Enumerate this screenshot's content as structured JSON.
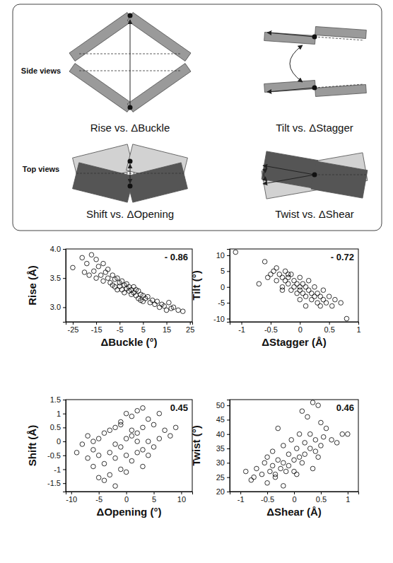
{
  "diagram": {
    "side_label": "Side views",
    "top_label": "Top views",
    "panels": [
      "Rise vs. ΔBuckle",
      "Tilt vs. ΔStagger",
      "Shift vs. ΔOpening",
      "Twist vs. ΔShear"
    ]
  },
  "chart_data": [
    {
      "type": "scatter",
      "x_label": "ΔBuckle (°)",
      "y_label": "Rise (Å)",
      "annotation": "- 0.86",
      "marker": "circle",
      "color": "#000000",
      "xlim": [
        -28,
        26
      ],
      "ylim": [
        2.75,
        4.0
      ],
      "xticks": [
        -25,
        -15,
        -5,
        5,
        15,
        25
      ],
      "yticks": [
        {
          "value": 3,
          "label": "3.0"
        },
        {
          "value": 3.5,
          "label": "3.5"
        },
        {
          "value": 4,
          "label": "4.0"
        }
      ],
      "x": [
        -25,
        -21,
        -20,
        -19,
        -18,
        -17,
        -16,
        -15,
        -15,
        -14,
        -13,
        -12,
        -12,
        -11,
        -10,
        -10,
        -9,
        -8,
        -8,
        -7,
        -7,
        -6,
        -6,
        -5,
        -5,
        -4,
        -4,
        -3,
        -3,
        -2,
        -2,
        -1,
        -1,
        0,
        0,
        1,
        1,
        2,
        2,
        3,
        3,
        4,
        4,
        5,
        5,
        6,
        7,
        8,
        9,
        10,
        11,
        12,
        13,
        14,
        15,
        16,
        17,
        18,
        20,
        22
      ],
      "y": [
        3.68,
        3.85,
        3.6,
        3.75,
        3.55,
        3.9,
        3.62,
        3.82,
        3.5,
        3.7,
        3.55,
        3.75,
        3.45,
        3.6,
        3.5,
        3.65,
        3.42,
        3.55,
        3.38,
        3.48,
        3.35,
        3.5,
        3.3,
        3.42,
        3.36,
        3.3,
        3.45,
        3.38,
        3.25,
        3.32,
        3.4,
        3.28,
        3.35,
        3.3,
        3.22,
        3.35,
        3.25,
        3.2,
        3.3,
        3.28,
        3.15,
        3.22,
        3.12,
        3.2,
        3.1,
        3.15,
        3.18,
        3.08,
        3.12,
        3.05,
        3.1,
        3.0,
        3.05,
        3.02,
        2.95,
        3.08,
        2.98,
        3.0,
        2.95,
        2.93
      ]
    },
    {
      "type": "scatter",
      "x_label": "ΔStagger (Å)",
      "y_label": "Tilt (°)",
      "annotation": "- 0.72",
      "marker": "circle",
      "color": "#000000",
      "xlim": [
        -1.2,
        1.0
      ],
      "ylim": [
        -11,
        12
      ],
      "xticks": [
        -1,
        -0.5,
        0,
        0.5,
        1
      ],
      "yticks": [
        -10,
        -5,
        0,
        5,
        10
      ],
      "x": [
        -1.1,
        -0.7,
        -0.6,
        -0.55,
        -0.5,
        -0.45,
        -0.4,
        -0.4,
        -0.35,
        -0.3,
        -0.3,
        -0.25,
        -0.25,
        -0.2,
        -0.2,
        -0.15,
        -0.15,
        -0.1,
        -0.1,
        -0.05,
        -0.05,
        0,
        0,
        0,
        0.05,
        0.05,
        0.1,
        0.1,
        0.15,
        0.15,
        0.2,
        0.2,
        0.25,
        0.25,
        0.3,
        0.3,
        0.35,
        0.4,
        0.4,
        0.45,
        0.5,
        0.55,
        0.6,
        0.7,
        0.8,
        -0.3,
        0.0,
        0.1,
        -0.2,
        0.35
      ],
      "y": [
        11,
        1,
        8,
        3,
        4,
        5,
        2,
        6,
        4,
        3,
        0,
        5,
        2,
        3,
        1,
        4,
        -1,
        2,
        0,
        1,
        -2,
        3,
        0,
        -1,
        1,
        -2,
        0,
        -3,
        -1,
        2,
        -2,
        -4,
        0,
        -3,
        -2,
        -5,
        -3,
        -1,
        -4,
        -5,
        -3,
        -6,
        -4,
        -5,
        -10,
        -1,
        -4,
        -6,
        4,
        -6
      ]
    },
    {
      "type": "scatter",
      "x_label": "ΔOpening (°)",
      "y_label": "Shift (Å)",
      "annotation": "0.45",
      "marker": "circle",
      "color": "#000000",
      "xlim": [
        -11,
        12
      ],
      "ylim": [
        -1.8,
        1.5
      ],
      "xticks": [
        -10,
        -5,
        0,
        5,
        10
      ],
      "yticks": [
        -1.5,
        -1,
        -0.5,
        0,
        0.5,
        1,
        1.5
      ],
      "x": [
        -9,
        -8,
        -7,
        -7,
        -6,
        -6,
        -5,
        -5,
        -5,
        -4,
        -4,
        -3,
        -3,
        -3,
        -2,
        -2,
        -2,
        -1,
        -1,
        -1,
        0,
        0,
        0,
        1,
        1,
        1,
        2,
        2,
        2,
        3,
        3,
        3,
        4,
        4,
        5,
        5,
        6,
        6,
        7,
        8,
        9,
        -4,
        -2,
        0,
        2,
        4,
        -6,
        1,
        3,
        -1
      ],
      "y": [
        -0.4,
        -0.1,
        -0.6,
        0.2,
        -0.9,
        -0.3,
        -1.3,
        -0.5,
        0.1,
        -0.8,
        0.3,
        -1.2,
        -0.4,
        0.4,
        -1.6,
        -0.6,
        0.5,
        -1.0,
        -0.2,
        0.7,
        -0.5,
        0.1,
        1.0,
        -0.7,
        0.2,
        0.9,
        -0.4,
        0.3,
        1.1,
        -0.3,
        0.5,
        1.2,
        0.0,
        0.8,
        -0.2,
        0.6,
        0.1,
        1.0,
        0.4,
        0.2,
        0.5,
        -1.4,
        -0.1,
        -1.1,
        0.0,
        -0.5,
        0.0,
        0.4,
        -0.9,
        0.6
      ]
    },
    {
      "type": "scatter",
      "x_label": "ΔShear (Å)",
      "y_label": "Twist (°)",
      "annotation": "0.46",
      "marker": "circle",
      "color": "#000000",
      "xlim": [
        -1.2,
        1.2
      ],
      "ylim": [
        20,
        52
      ],
      "xticks": [
        -1,
        -0.5,
        0,
        0.5,
        1
      ],
      "yticks": [
        20,
        25,
        30,
        35,
        40,
        45,
        50
      ],
      "x": [
        -0.9,
        -0.8,
        -0.75,
        -0.7,
        -0.6,
        -0.55,
        -0.5,
        -0.5,
        -0.45,
        -0.4,
        -0.4,
        -0.35,
        -0.3,
        -0.3,
        -0.25,
        -0.2,
        -0.2,
        -0.15,
        -0.1,
        -0.1,
        -0.05,
        0,
        0,
        0.05,
        0.1,
        0.1,
        0.15,
        0.2,
        0.2,
        0.25,
        0.3,
        0.3,
        0.35,
        0.4,
        0.4,
        0.45,
        0.5,
        0.5,
        0.55,
        0.6,
        0.7,
        0.8,
        0.9,
        1.0,
        -0.35,
        0.15,
        0.35,
        0.45,
        -0.2,
        0.05
      ],
      "y": [
        27,
        24,
        25,
        28,
        26,
        30,
        23,
        32,
        27,
        29,
        34,
        26,
        31,
        42,
        28,
        30,
        36,
        27,
        33,
        29,
        38,
        31,
        27,
        35,
        32,
        40,
        30,
        37,
        33,
        46,
        35,
        40,
        51,
        38,
        34,
        50,
        44,
        36,
        39,
        42,
        38,
        37,
        40,
        40,
        25,
        48,
        28,
        32,
        22,
        26
      ]
    }
  ]
}
